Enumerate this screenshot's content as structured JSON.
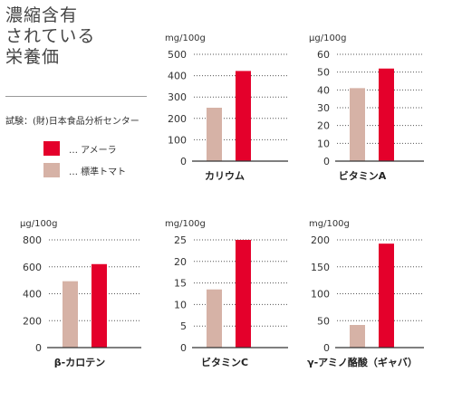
{
  "title": {
    "line1": "濃縮含有",
    "line2": "されている",
    "line3": "栄養価"
  },
  "source": "試験：(財)日本食品分析センター",
  "legend": [
    {
      "label": "… アメーラ",
      "color": "#e4002b"
    },
    {
      "label": "… 標準トマト",
      "color": "#d6b2a6"
    }
  ],
  "colors": {
    "amela": "#e4002b",
    "standard": "#d6b2a6",
    "grid": "#555555",
    "axis": "#333333"
  },
  "chart_data": [
    {
      "type": "bar",
      "title": "カリウム",
      "unit": "mg/100g",
      "ylim": [
        0,
        500
      ],
      "ticks": [
        "0",
        "100",
        "200",
        "300",
        "400",
        "500"
      ],
      "series": [
        {
          "name": "標準トマト",
          "values": [
            250
          ]
        },
        {
          "name": "アメーラ",
          "values": [
            422
          ]
        }
      ]
    },
    {
      "type": "bar",
      "title": "ビタミンA",
      "unit": "μg/100g",
      "ylim": [
        0,
        60
      ],
      "ticks": [
        "0",
        "10",
        "20",
        "30",
        "40",
        "50",
        "60"
      ],
      "series": [
        {
          "name": "標準トマト",
          "values": [
            41
          ]
        },
        {
          "name": "アメーラ",
          "values": [
            52
          ]
        }
      ]
    },
    {
      "type": "bar",
      "title": "β-カロテン",
      "unit": "μg/100g",
      "ylim": [
        0,
        800
      ],
      "ticks": [
        "0",
        "200",
        "400",
        "600",
        "800"
      ],
      "series": [
        {
          "name": "標準トマト",
          "values": [
            493
          ]
        },
        {
          "name": "アメーラ",
          "values": [
            620
          ]
        }
      ]
    },
    {
      "type": "bar",
      "title": "ビタミンC",
      "unit": "mg/100g",
      "ylim": [
        0,
        25
      ],
      "ticks": [
        "0",
        "5",
        "10",
        "15",
        "20",
        "25"
      ],
      "series": [
        {
          "name": "標準トマト",
          "values": [
            13.5
          ]
        },
        {
          "name": "アメーラ",
          "values": [
            25
          ]
        }
      ]
    },
    {
      "type": "bar",
      "title": "γ-アミノ酪酸（ギャバ）",
      "unit": "mg/100g",
      "ylim": [
        0,
        200
      ],
      "ticks": [
        "0",
        "50",
        "100",
        "150",
        "200"
      ],
      "series": [
        {
          "name": "標準トマト",
          "values": [
            42
          ]
        },
        {
          "name": "アメーラ",
          "values": [
            193
          ]
        }
      ]
    }
  ]
}
